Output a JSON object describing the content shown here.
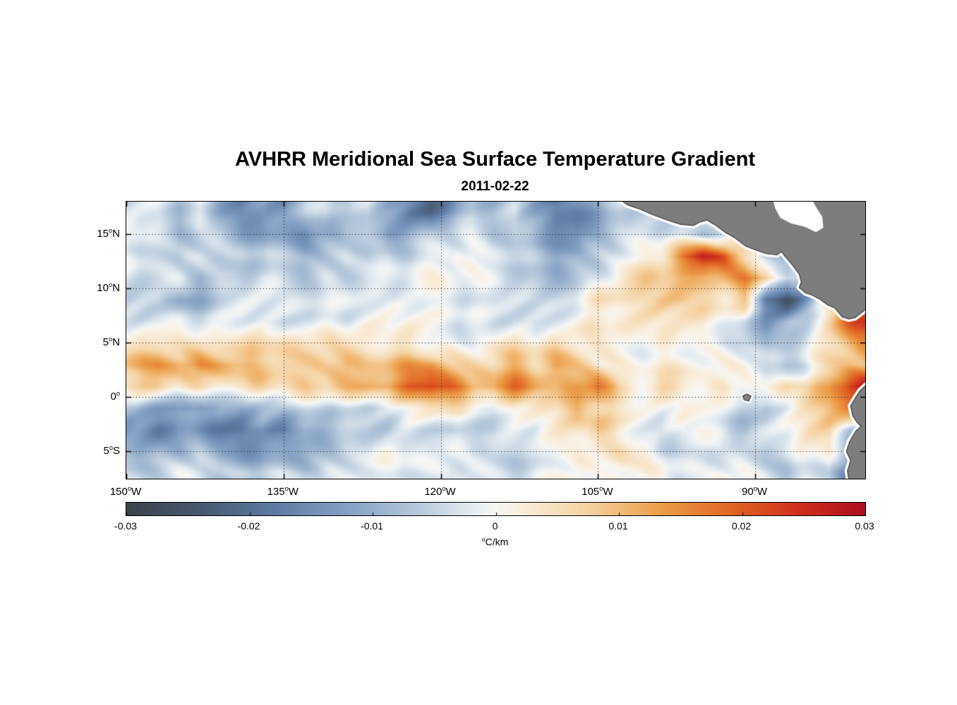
{
  "chart_data": {
    "type": "heatmap",
    "title": "AVHRR Meridional Sea Surface Temperature Gradient",
    "date": "2011-02-22",
    "lon_range": [
      -150,
      -79.5
    ],
    "lat_range": [
      -7.5,
      18
    ],
    "x_axis": {
      "ticks": [
        {
          "value": -150,
          "label": "150°W"
        },
        {
          "value": -135,
          "label": "135°W"
        },
        {
          "value": -120,
          "label": "120°W"
        },
        {
          "value": -105,
          "label": "105°W"
        },
        {
          "value": -90,
          "label": "90°W"
        }
      ]
    },
    "y_axis": {
      "ticks": [
        {
          "value": 15,
          "label": "15°N"
        },
        {
          "value": 10,
          "label": "10°N"
        },
        {
          "value": 5,
          "label": "5°N"
        },
        {
          "value": 0,
          "label": "0°"
        },
        {
          "value": -5,
          "label": "5°S"
        }
      ]
    },
    "colorbar": {
      "label": "°C/km",
      "min": -0.03,
      "max": 0.03,
      "ticks": [
        {
          "value": -0.03,
          "label": "-0.03"
        },
        {
          "value": -0.02,
          "label": "-0.02"
        },
        {
          "value": -0.01,
          "label": "-0.01"
        },
        {
          "value": 0,
          "label": "0"
        },
        {
          "value": 0.01,
          "label": "0.01"
        },
        {
          "value": 0.02,
          "label": "0.02"
        },
        {
          "value": 0.03,
          "label": "0.03"
        }
      ]
    },
    "colormap": [
      {
        "t": 0.0,
        "c": "#3b434c"
      },
      {
        "t": 0.1,
        "c": "#46586f"
      },
      {
        "t": 0.2,
        "c": "#5d7ba3"
      },
      {
        "t": 0.3,
        "c": "#85a1c4"
      },
      {
        "t": 0.4,
        "c": "#b9cbdd"
      },
      {
        "t": 0.47,
        "c": "#e6edf2"
      },
      {
        "t": 0.5,
        "c": "#f7f6f3"
      },
      {
        "t": 0.53,
        "c": "#f9efdf"
      },
      {
        "t": 0.62,
        "c": "#f5d3a4"
      },
      {
        "t": 0.72,
        "c": "#ec9f4a"
      },
      {
        "t": 0.82,
        "c": "#e06423"
      },
      {
        "t": 0.91,
        "c": "#cf2f1d"
      },
      {
        "t": 1.0,
        "c": "#ac0e1e"
      }
    ],
    "grid": {
      "value_scale": 0.001,
      "lons": [
        -149,
        -147,
        -145,
        -143,
        -141,
        -139,
        -137,
        -135,
        -133,
        -131,
        -129,
        -127,
        -125,
        -123,
        -121,
        -119,
        -117,
        -115,
        -113,
        -111,
        -109,
        -107,
        -105,
        -103,
        -101,
        -99,
        -97,
        -95,
        -93,
        -91,
        -89,
        -87,
        -85,
        -83,
        -81,
        -79
      ],
      "lats": [
        17,
        15,
        13,
        11,
        9,
        7,
        5,
        3,
        1,
        -1,
        -3,
        -5,
        -7
      ],
      "values": [
        [
          -6,
          -4,
          -8,
          -3,
          -10,
          -14,
          -9,
          -12,
          -6,
          -3,
          -8,
          -5,
          -12,
          -18,
          -22,
          -15,
          -8,
          -10,
          -6,
          -14,
          -20,
          -18,
          -10,
          -5,
          -3,
          -2,
          -2,
          -3,
          -2,
          -2,
          -2,
          -2,
          -2,
          -2,
          -2,
          -2
        ],
        [
          -3,
          -6,
          -10,
          -6,
          -4,
          -8,
          -12,
          -8,
          -14,
          -10,
          -6,
          -9,
          -15,
          -12,
          -8,
          -6,
          -4,
          -8,
          -5,
          -10,
          -14,
          -16,
          -8,
          -4,
          -3,
          -4,
          -6,
          -8,
          -5,
          2,
          5,
          3,
          0,
          -2,
          -2,
          -2
        ],
        [
          -2,
          -4,
          -6,
          -3,
          -5,
          -3,
          -6,
          -4,
          -8,
          -5,
          -3,
          -6,
          -4,
          -6,
          -3,
          -5,
          -2,
          -4,
          -6,
          -8,
          -10,
          -6,
          -4,
          -2,
          0,
          3,
          15,
          26,
          22,
          8,
          -4,
          -10,
          -6,
          -3,
          -2,
          -2
        ],
        [
          -2,
          -3,
          -2,
          -8,
          -6,
          -5,
          -2,
          -3,
          -5,
          -2,
          -4,
          -3,
          -5,
          -3,
          -2,
          -3,
          -4,
          -2,
          -3,
          -5,
          -6,
          -4,
          -3,
          2,
          4,
          6,
          8,
          10,
          14,
          18,
          12,
          -2,
          -6,
          -3,
          -2,
          -2
        ],
        [
          -2,
          -2,
          -10,
          -8,
          -4,
          -2,
          -3,
          -2,
          -3,
          -4,
          -2,
          -3,
          -2,
          -4,
          -2,
          -3,
          -2,
          -3,
          -2,
          -2,
          -4,
          -3,
          2,
          3,
          5,
          8,
          10,
          8,
          6,
          10,
          -18,
          -26,
          -12,
          6,
          12,
          20
        ],
        [
          -1,
          -2,
          -1,
          -3,
          -2,
          -1,
          -2,
          -3,
          -1,
          -2,
          -3,
          -1,
          -2,
          -1,
          -3,
          -2,
          -1,
          -2,
          -1,
          -3,
          -2,
          -1,
          1,
          2,
          3,
          4,
          3,
          5,
          2,
          -4,
          -12,
          -8,
          -4,
          6,
          18,
          24
        ],
        [
          6,
          8,
          7,
          9,
          6,
          5,
          7,
          5,
          3,
          3,
          2,
          2,
          2,
          3,
          1,
          2,
          1,
          2,
          3,
          1,
          2,
          1,
          2,
          3,
          2,
          3,
          2,
          1,
          -2,
          -6,
          -10,
          -6,
          -2,
          4,
          10,
          16
        ],
        [
          12,
          16,
          14,
          18,
          15,
          12,
          10,
          8,
          6,
          4,
          8,
          6,
          10,
          14,
          16,
          12,
          8,
          6,
          10,
          6,
          12,
          8,
          4,
          3,
          2,
          3,
          4,
          2,
          3,
          2,
          -4,
          -8,
          -3,
          4,
          8,
          10
        ],
        [
          8,
          10,
          6,
          8,
          5,
          4,
          6,
          3,
          5,
          4,
          8,
          12,
          16,
          22,
          26,
          20,
          12,
          10,
          16,
          12,
          8,
          14,
          18,
          8,
          4,
          10,
          6,
          3,
          5,
          2,
          -2,
          4,
          6,
          10,
          22,
          28
        ],
        [
          -8,
          -12,
          -10,
          -14,
          -9,
          -12,
          -8,
          -10,
          -6,
          -4,
          -3,
          -4,
          -2,
          2,
          4,
          3,
          -2,
          -4,
          2,
          3,
          5,
          14,
          10,
          6,
          3,
          2,
          4,
          2,
          -3,
          -5,
          -8,
          -4,
          2,
          8,
          18,
          24
        ],
        [
          -12,
          -16,
          -10,
          -14,
          -18,
          -22,
          -16,
          -20,
          -12,
          -8,
          -6,
          -4,
          -6,
          -3,
          -5,
          -8,
          -4,
          -6,
          -3,
          -2,
          3,
          6,
          10,
          4,
          2,
          -2,
          3,
          2,
          -4,
          -8,
          -6,
          -3,
          2,
          5,
          -6,
          -15
        ],
        [
          -10,
          -8,
          -12,
          -9,
          -14,
          -16,
          -12,
          -10,
          -8,
          -5,
          -3,
          -4,
          -2,
          -3,
          -4,
          -2,
          -5,
          -3,
          -2,
          -3,
          2,
          4,
          6,
          8,
          3,
          -2,
          -4,
          -3,
          -6,
          -4,
          -8,
          -5,
          -3,
          2,
          -10,
          -18
        ],
        [
          -4,
          -6,
          -3,
          -5,
          -8,
          -6,
          -4,
          -3,
          -5,
          -2,
          -3,
          -2,
          -4,
          -2,
          -3,
          -5,
          -2,
          -3,
          -4,
          -2,
          3,
          5,
          2,
          4,
          2,
          3,
          -2,
          -4,
          -2,
          -3,
          -5,
          -8,
          -4,
          -2,
          -16,
          -26
        ]
      ]
    },
    "land": {
      "fill": "#7d7d7d",
      "edge": "#3f3f3f",
      "coast_buffer": "#ffffff",
      "polygons": {
        "central_america": [
          [
            -103.5,
            18.6
          ],
          [
            -102.2,
            17.7
          ],
          [
            -101.0,
            17.3
          ],
          [
            -99.8,
            16.8
          ],
          [
            -98.4,
            16.3
          ],
          [
            -97.1,
            15.9
          ],
          [
            -95.9,
            15.8
          ],
          [
            -95.3,
            16.1
          ],
          [
            -94.6,
            16.3
          ],
          [
            -93.9,
            15.9
          ],
          [
            -92.9,
            15.2
          ],
          [
            -92.0,
            14.7
          ],
          [
            -90.9,
            13.9
          ],
          [
            -89.8,
            13.5
          ],
          [
            -88.9,
            13.2
          ],
          [
            -87.9,
            13.1
          ],
          [
            -87.5,
            13.4
          ],
          [
            -87.1,
            12.9
          ],
          [
            -86.4,
            12.1
          ],
          [
            -85.8,
            11.3
          ],
          [
            -85.6,
            10.6
          ],
          [
            -85.8,
            10.1
          ],
          [
            -85.2,
            9.6
          ],
          [
            -84.6,
            9.4
          ],
          [
            -83.8,
            9.0
          ],
          [
            -83.1,
            8.5
          ],
          [
            -82.4,
            8.2
          ],
          [
            -81.7,
            7.4
          ],
          [
            -81.1,
            7.2
          ],
          [
            -80.5,
            7.3
          ],
          [
            -80.1,
            7.6
          ],
          [
            -79.7,
            7.9
          ],
          [
            -79.2,
            8.3
          ],
          [
            -79.2,
            18.6
          ]
        ],
        "caribbean_nodata": [
          [
            -88.4,
            18.6
          ],
          [
            -88.1,
            17.4
          ],
          [
            -87.6,
            16.5
          ],
          [
            -86.6,
            16.0
          ],
          [
            -85.3,
            15.7
          ],
          [
            -84.2,
            15.2
          ],
          [
            -83.5,
            15.6
          ],
          [
            -83.6,
            16.6
          ],
          [
            -84.2,
            17.5
          ],
          [
            -84.8,
            18.6
          ]
        ],
        "south_america": [
          [
            -79.2,
            1.3
          ],
          [
            -80.0,
            0.6
          ],
          [
            -80.4,
            0.0
          ],
          [
            -80.9,
            -0.8
          ],
          [
            -80.7,
            -1.7
          ],
          [
            -80.3,
            -2.3
          ],
          [
            -79.9,
            -2.7
          ],
          [
            -80.4,
            -3.1
          ],
          [
            -81.0,
            -4.1
          ],
          [
            -81.3,
            -5.0
          ],
          [
            -80.9,
            -5.8
          ],
          [
            -81.2,
            -6.8
          ],
          [
            -81.0,
            -8.0
          ],
          [
            -79.2,
            -8.0
          ]
        ],
        "galapagos": [
          [
            -91.2,
            0.1
          ],
          [
            -90.8,
            0.3
          ],
          [
            -90.4,
            0.1
          ],
          [
            -90.6,
            -0.35
          ],
          [
            -91.05,
            -0.25
          ]
        ]
      }
    }
  }
}
